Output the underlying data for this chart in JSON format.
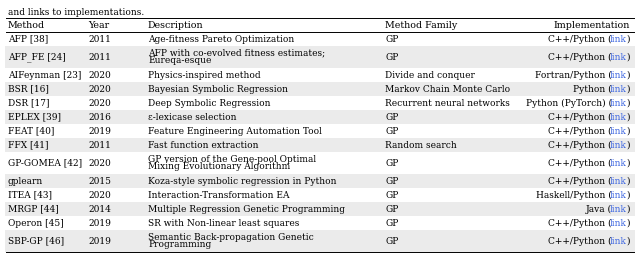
{
  "title_text": "and links to implementations.",
  "headers": [
    "Method",
    "Year",
    "Description",
    "Method Family",
    "Implementation"
  ],
  "rows": [
    {
      "method": "AFP [38]",
      "year": "2011",
      "description": "Age-fitness Pareto Optimization",
      "description2": "",
      "family": "GP",
      "impl": "C++/Python (",
      "impl_link": "link",
      "impl_end": ")",
      "shaded": false
    },
    {
      "method": "AFP_FE [24]",
      "year": "2011",
      "description": "AFP with co-evolved fitness estimates;",
      "description2": "Eureqa-esque",
      "family": "GP",
      "impl": "C++/Python (",
      "impl_link": "link",
      "impl_end": ")",
      "shaded": true
    },
    {
      "method": "AIFeynman [23]",
      "year": "2020",
      "description": "Physics-inspired method",
      "description2": "",
      "family": "Divide and conquer",
      "impl": "Fortran/Python (",
      "impl_link": "link",
      "impl_end": ")",
      "shaded": false
    },
    {
      "method": "BSR [16]",
      "year": "2020",
      "description": "Bayesian Symbolic Regression",
      "description2": "",
      "family": "Markov Chain Monte Carlo",
      "impl": "Python (",
      "impl_link": "link",
      "impl_end": ")",
      "shaded": true
    },
    {
      "method": "DSR [17]",
      "year": "2020",
      "description": "Deep Symbolic Regression",
      "description2": "",
      "family": "Recurrent neural networks",
      "impl": "Python (PyTorch) (",
      "impl_link": "link",
      "impl_end": ")",
      "shaded": false
    },
    {
      "method": "EPLEX [39]",
      "year": "2016",
      "description": "ε-lexicase selection",
      "description2": "",
      "family": "GP",
      "impl": "C++/Python (",
      "impl_link": "link",
      "impl_end": ")",
      "shaded": true
    },
    {
      "method": "FEAT [40]",
      "year": "2019",
      "description": "Feature Engineering Automation Tool",
      "description2": "",
      "family": "GP",
      "impl": "C++/Python (",
      "impl_link": "link",
      "impl_end": ")",
      "shaded": false
    },
    {
      "method": "FFX [41]",
      "year": "2011",
      "description": "Fast function extraction",
      "description2": "",
      "family": "Random search",
      "impl": "C++/Python (",
      "impl_link": "link",
      "impl_end": ")",
      "shaded": true
    },
    {
      "method": "GP-GOMEA [42]",
      "year": "2020",
      "description": "GP version of the Gene-pool Optimal",
      "description2": "Mixing Evolutionary Algorithm",
      "family": "GP",
      "impl": "C++/Python (",
      "impl_link": "link",
      "impl_end": ")",
      "shaded": false
    },
    {
      "method": "gplearn",
      "year": "2015",
      "description": "Koza-style symbolic regression in Python",
      "description2": "",
      "family": "GP",
      "impl": "C++/Python (",
      "impl_link": "link",
      "impl_end": ")",
      "shaded": true
    },
    {
      "method": "ITEA [43]",
      "year": "2020",
      "description": "Interaction-Transformation EA",
      "description2": "",
      "family": "GP",
      "impl": "Haskell/Python (",
      "impl_link": "link",
      "impl_end": ")",
      "shaded": false
    },
    {
      "method": "MRGP [44]",
      "year": "2014",
      "description": "Multiple Regression Genetic Programming",
      "description2": "",
      "family": "GP",
      "impl": "Java (",
      "impl_link": "link",
      "impl_end": ")",
      "shaded": true
    },
    {
      "method": "Operon [45]",
      "year": "2019",
      "description": "SR with Non-linear least squares",
      "description2": "",
      "family": "GP",
      "impl": "C++/Python (",
      "impl_link": "link",
      "impl_end": ")",
      "shaded": false
    },
    {
      "method": "SBP-GP [46]",
      "year": "2019",
      "description": "Semantic Back-propagation Genetic",
      "description2": "Programming",
      "family": "GP",
      "impl": "C++/Python (",
      "impl_link": "link",
      "impl_end": ")",
      "shaded": true
    }
  ],
  "shade_color": "#ebebeb",
  "link_color": "#4169e1",
  "header_line_color": "#000000",
  "bg_color": "#ffffff",
  "font_size": 6.5,
  "header_font_size": 6.8
}
